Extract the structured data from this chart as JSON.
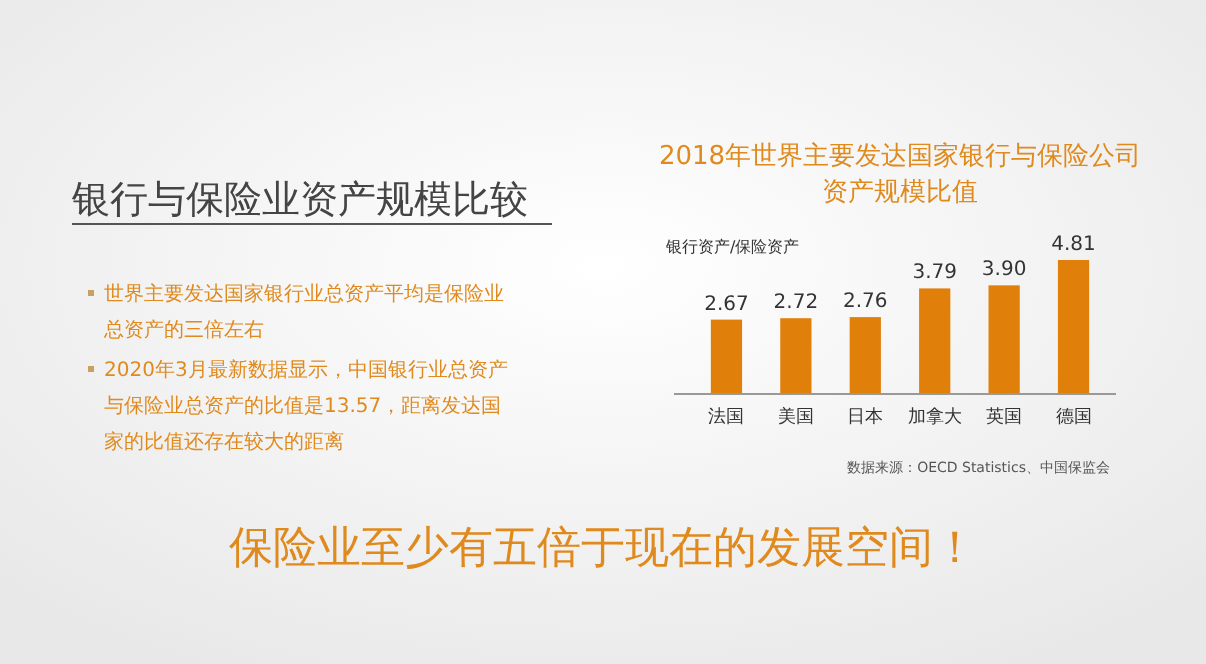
{
  "chart_data": {
    "type": "bar",
    "title": "2018年世界主要发达国家银行与保险公司资产规模比值",
    "ylabel": "银行资产/保险资产",
    "categories": [
      "法国",
      "美国",
      "日本",
      "加拿大",
      "英国",
      "德国"
    ],
    "values": [
      2.67,
      2.72,
      2.76,
      3.79,
      3.9,
      4.81
    ],
    "value_labels": [
      "2.67",
      "2.72",
      "2.76",
      "3.79",
      "3.90",
      "4.81"
    ],
    "color": "#e07f0a",
    "annotations": [
      "银行与保险业资产规模比较",
      "世界主要发达国家银行业总资产平均是保险业总资产的三倍左右",
      "2020年3月最新数据显示，中国银行业总资产与保险业总资产的比值是13.57，距离发达国家的比值还存在较大的距离",
      "数据来源：OECD Statistics、中国保监会",
      "保险业至少有五倍于现在的发展空间！"
    ]
  }
}
